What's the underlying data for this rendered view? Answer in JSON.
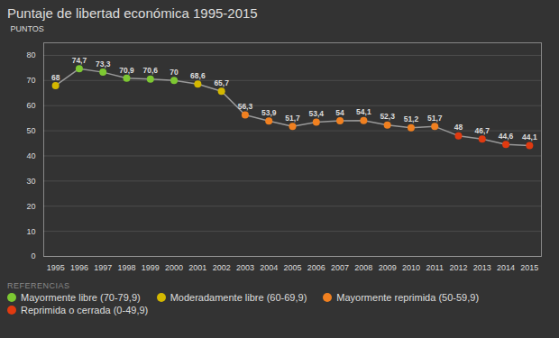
{
  "chart_data": {
    "type": "line",
    "title": "Puntaje de libertad económica 1995-2015",
    "ylabel": "PUNTOS",
    "x": [
      1995,
      1996,
      1997,
      1998,
      1999,
      2000,
      2001,
      2002,
      2003,
      2004,
      2005,
      2006,
      2007,
      2008,
      2009,
      2010,
      2011,
      2012,
      2013,
      2014,
      2015
    ],
    "values": [
      68,
      74.7,
      73.3,
      70.9,
      70.6,
      70,
      68.6,
      65.7,
      56.3,
      53.9,
      51.7,
      53.4,
      54,
      54.1,
      52.3,
      51.2,
      51.7,
      48,
      46.7,
      44.6,
      44.1
    ],
    "value_labels": [
      "68",
      "74,7",
      "73,3",
      "70,9",
      "70,6",
      "70",
      "68,6",
      "65,7",
      "56,3",
      "53,9",
      "51,7",
      "53,4",
      "54",
      "54,1",
      "52,3",
      "51,2",
      "51,7",
      "48",
      "46,7",
      "44,6",
      "44,1"
    ],
    "data_labels": true,
    "color": "#999999",
    "colors": [
      "#d4b800",
      "#7dc832",
      "#7dc832",
      "#7dc832",
      "#7dc832",
      "#7dc832",
      "#d4b800",
      "#d4b800",
      "#f08020",
      "#f08020",
      "#f08020",
      "#f08020",
      "#f08020",
      "#f08020",
      "#f08020",
      "#f08020",
      "#f08020",
      "#e03a10",
      "#e03a10",
      "#e03a10",
      "#e03a10"
    ],
    "marker": "circle",
    "xlim": [
      1994.5,
      2015.5
    ],
    "xticks": [
      1995,
      1996,
      1997,
      1998,
      1999,
      2000,
      2001,
      2002,
      2003,
      2004,
      2005,
      2006,
      2007,
      2008,
      2009,
      2010,
      2011,
      2012,
      2013,
      2014,
      2015
    ],
    "ylim": [
      0,
      85
    ],
    "yticks": [
      0,
      10,
      20,
      30,
      40,
      50,
      60,
      70,
      80
    ],
    "grid": "y",
    "legend": "bottom",
    "legend_title": "REFERENCIAS",
    "legend_items": [
      {
        "name": "Mayormente libre (70-79,9)",
        "color": "#7dc832"
      },
      {
        "name": "Moderadamente libre (60-69,9)",
        "color": "#d4b800"
      },
      {
        "name": "Mayormente reprimida (50-59,9)",
        "color": "#f08020"
      },
      {
        "name": "Reprimida o cerrada (0-49,9)",
        "color": "#e03a10"
      }
    ],
    "background_color": "#333333",
    "text_color": "#dddddd"
  }
}
